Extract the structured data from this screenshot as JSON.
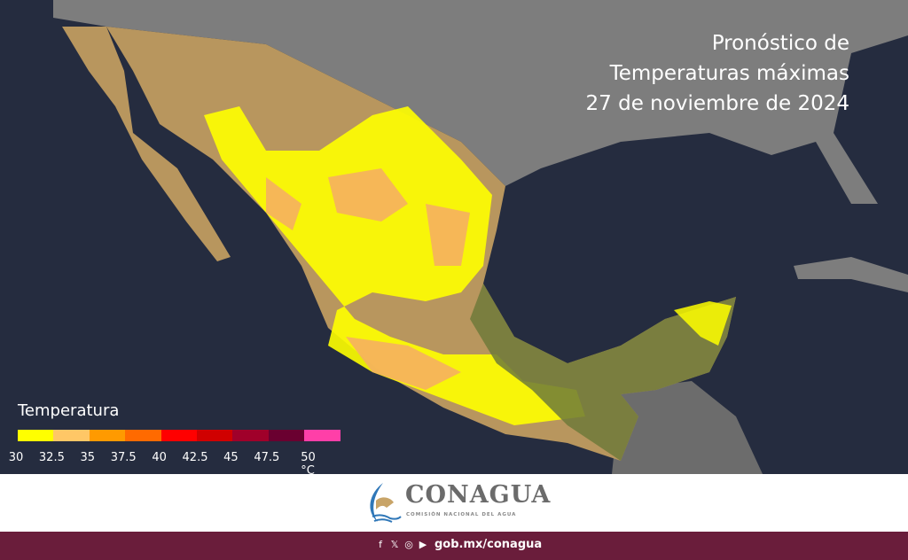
{
  "title": {
    "line1": "Pronóstico de",
    "line2": "Temperaturas máximas",
    "line3": "27 de noviembre de 2024"
  },
  "legend": {
    "title": "Temperatura",
    "colors": [
      "#ffff00",
      "#ffc766",
      "#ff9a00",
      "#ff6a00",
      "#ff0000",
      "#d00000",
      "#a0002a",
      "#6a0030",
      "#ff3fa8"
    ],
    "labels": [
      "30",
      "32.5",
      "35",
      "37.5",
      "40",
      "42.5",
      "45",
      "47.5",
      "50 °C"
    ]
  },
  "map_colors": {
    "ocean": "#252c3f",
    "land_outside": "#7d7d7d",
    "mexico_base": "#b8965e",
    "yellow": "#ffff00",
    "orange": "#f5b060",
    "olive": "#6f7a3a"
  },
  "footer": {
    "logo_name": "CONAGUA",
    "logo_subtitle": "COMISIÓN NACIONAL DEL AGUA",
    "social_icons": [
      "facebook-icon",
      "x-icon",
      "instagram-icon",
      "youtube-icon"
    ],
    "url": "gob.mx/conagua"
  }
}
